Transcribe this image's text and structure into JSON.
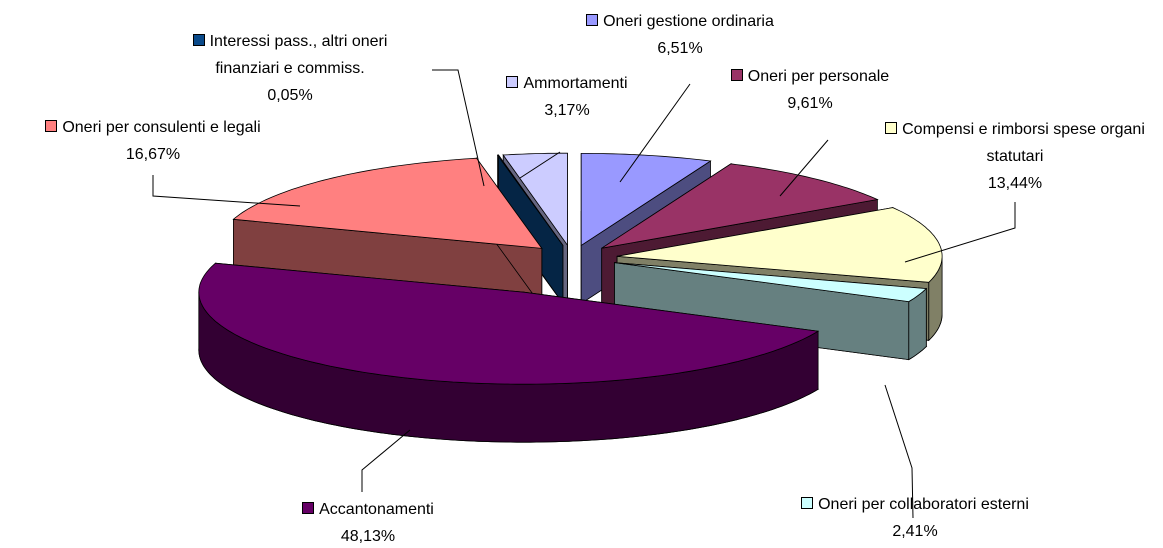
{
  "chart_data": {
    "type": "pie3d",
    "categories": [
      "Oneri gestione ordinaria",
      "Oneri per personale",
      "Compensi e rimborsi spese organi statutari",
      "Oneri per collaboratori esterni",
      "Accantonamenti",
      "Oneri per consulenti e legali",
      "Interessi pass., altri oneri finanziari e commiss.",
      "Ammortamenti"
    ],
    "values": [
      6.51,
      9.61,
      13.44,
      2.41,
      48.13,
      16.67,
      0.05,
      3.17
    ],
    "value_labels": [
      "6,51%",
      "9,61%",
      "13,44%",
      "2,41%",
      "48,13%",
      "16,67%",
      "0,05%",
      "3,17%"
    ],
    "colors": [
      "#9999ff",
      "#993366",
      "#ffffcc",
      "#ccffff",
      "#660066",
      "#ff8080",
      "#0a4a8a",
      "#ccccff"
    ]
  }
}
